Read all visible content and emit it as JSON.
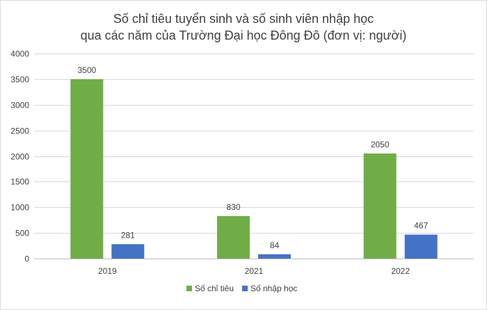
{
  "chart_data": {
    "type": "bar",
    "title_lines": [
      "Số chỉ tiêu tuyển sinh và số sinh viên nhập học",
      "qua các năm của Trường Đại học Đông Đô (đơn vị: người)"
    ],
    "categories": [
      "2019",
      "2021",
      "2022"
    ],
    "series": [
      {
        "name": "Số chỉ tiêu",
        "values": [
          3500,
          830,
          2050
        ],
        "color": "#70ad47"
      },
      {
        "name": "Số nhập học",
        "values": [
          281,
          84,
          467
        ],
        "color": "#4472c4"
      }
    ],
    "ylim": [
      0,
      4000
    ],
    "yticks": [
      0,
      500,
      1000,
      1500,
      2000,
      2500,
      3000,
      3500,
      4000
    ],
    "grid": true,
    "legend_position": "bottom"
  }
}
